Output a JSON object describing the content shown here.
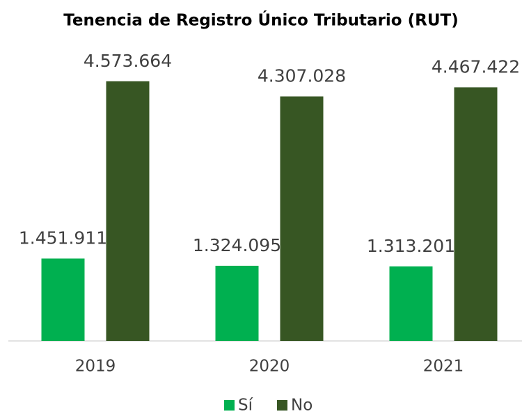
{
  "chart_data": {
    "type": "bar",
    "title": "Tenencia de Registro Único Tributario (RUT)",
    "categories": [
      "2019",
      "2020",
      "2021"
    ],
    "series": [
      {
        "name": "Sí",
        "color": "#00b050",
        "values": [
          1451911,
          1324095,
          1313201
        ],
        "value_labels": [
          "1.451.911",
          "1.324.095",
          "1.313.201"
        ]
      },
      {
        "name": "No",
        "color": "#375623",
        "values": [
          4573664,
          4307028,
          4467422
        ],
        "value_labels": [
          "4.573.664",
          "4.307.028",
          "4.467.422"
        ]
      }
    ],
    "ylim": [
      0,
      5000000
    ],
    "legend": "bottom"
  }
}
